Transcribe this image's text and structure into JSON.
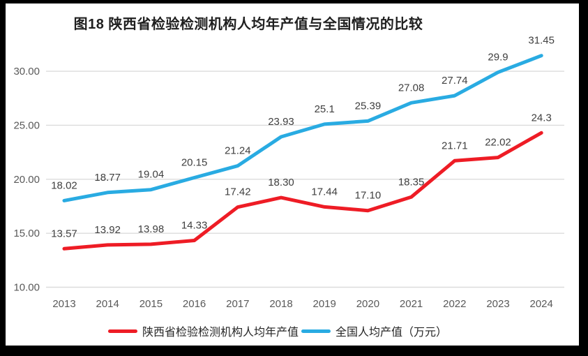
{
  "title": "图18 陕西省检验检测机构人均年产值与全国情况的比较",
  "colors": {
    "shaanxi": "#ee1c25",
    "national": "#29abe2",
    "grid": "#dcdcdc",
    "axis_text": "#595959",
    "label_text": "#3f3f3f",
    "frame": "#000000",
    "background": "#ffffff"
  },
  "chart_data": {
    "type": "line",
    "title": "图18 陕西省检验检测机构人均年产值与全国情况的比较",
    "categories": [
      "2013",
      "2014",
      "2015",
      "2016",
      "2017",
      "2018",
      "2019",
      "2020",
      "2021",
      "2022",
      "2023",
      "2024"
    ],
    "series": [
      {
        "name": "陕西省检验检测机构人均年产值",
        "color_key": "shaanxi",
        "values": [
          13.57,
          13.92,
          13.98,
          14.33,
          17.42,
          18.3,
          17.44,
          17.1,
          18.35,
          21.71,
          22.02,
          24.3
        ],
        "labels": [
          "13.57",
          "13.92",
          "13.98",
          "14.33",
          "17.42",
          "18.30",
          "17.44",
          "17.10",
          "18.35",
          "21.71",
          "22.02",
          "24.3"
        ]
      },
      {
        "name": "全国人均产值（万元）",
        "color_key": "national",
        "values": [
          18.02,
          18.77,
          19.04,
          20.15,
          21.24,
          23.93,
          25.1,
          25.39,
          27.08,
          27.74,
          29.9,
          31.45
        ],
        "labels": [
          "18.02",
          "18.77",
          "19.04",
          "20.15",
          "21.24",
          "23.93",
          "25.1",
          "25.39",
          "27.08",
          "27.74",
          "29.9",
          "31.45"
        ]
      }
    ],
    "xlabel": "",
    "ylabel": "",
    "ylim": [
      10,
      32.5
    ],
    "yticks": [
      10,
      15,
      20,
      25,
      30
    ],
    "ytick_labels": [
      "10.00",
      "15.00",
      "20.00",
      "25.00",
      "30.00"
    ],
    "grid": true,
    "data_labels": true,
    "legend_position": "bottom"
  },
  "legend": {
    "items": [
      {
        "label": "陕西省检验检测机构人均年产值",
        "color_key": "shaanxi"
      },
      {
        "label": "全国人均产值（万元）",
        "color_key": "national"
      }
    ]
  }
}
